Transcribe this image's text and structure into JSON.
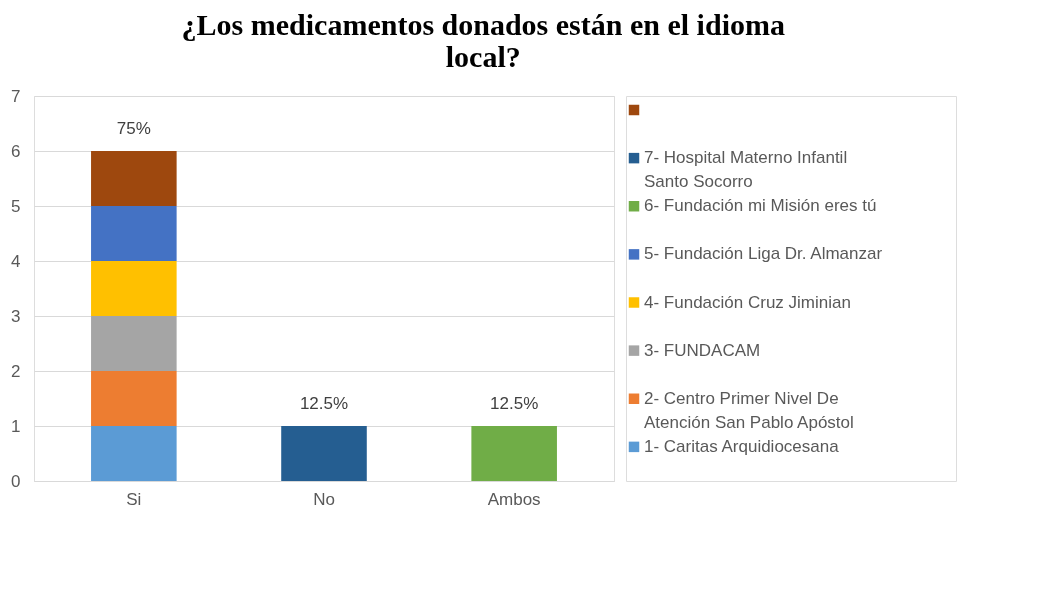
{
  "chart_data": {
    "type": "bar",
    "title": "¿Los medicamentos donados están en el idioma local?",
    "categories": [
      "Si",
      "No",
      "Ambos"
    ],
    "stacked": true,
    "series": [
      {
        "name": "1- Caritas Arquidiocesana",
        "color": "#5b9bd5",
        "values": [
          1,
          null,
          null
        ]
      },
      {
        "name": "2- Centro Primer Nivel De Atención San Pablo Apóstol",
        "color": "#ed7d31",
        "values": [
          1,
          null,
          null
        ]
      },
      {
        "name": "3- FUNDACAM",
        "color": "#a5a5a5",
        "values": [
          1,
          null,
          null
        ]
      },
      {
        "name": "4- Fundación Cruz Jiminian",
        "color": "#ffc000",
        "values": [
          1,
          null,
          null
        ]
      },
      {
        "name": "5- Fundación Liga Dr. Almanzar",
        "color": "#4472c4",
        "values": [
          1,
          null,
          null
        ]
      },
      {
        "name": "6- Fundación mi Misión eres tú",
        "color": "#70ad47",
        "values": [
          null,
          null,
          1
        ]
      },
      {
        "name": "7- Hospital Materno Infantil Santo Socorro",
        "color": "#255e91",
        "values": [
          null,
          1,
          null
        ]
      },
      {
        "color": "#9e480e",
        "values": [
          1,
          null,
          null
        ]
      }
    ],
    "annotations": [
      {
        "text": "75%",
        "x": "Si",
        "y": 6
      },
      {
        "text": "12.5%",
        "x": "No",
        "y": 1
      },
      {
        "text": "12.5%",
        "x": "Ambos",
        "y": 1
      }
    ],
    "ylim": [
      0,
      7
    ],
    "yticks": [
      0,
      1,
      2,
      3,
      4,
      5,
      6,
      7
    ],
    "grid": "y",
    "legend": "right"
  }
}
